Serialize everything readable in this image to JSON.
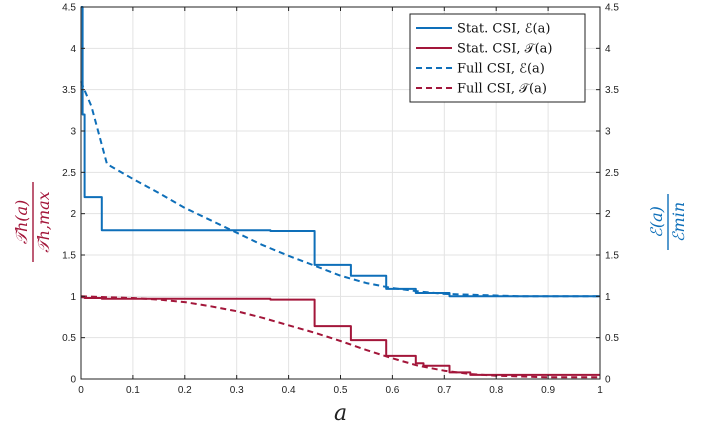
{
  "chart_data": {
    "type": "line",
    "xlabel": "a",
    "ylabel_left": {
      "num": "𝒯h(a)",
      "den": "𝒯h,max"
    },
    "ylabel_right": {
      "num": "ℰ(a)",
      "den": "ℰmin"
    },
    "xlim": [
      0,
      1
    ],
    "ylim": [
      0,
      4.5
    ],
    "grid": true,
    "legend_position": "top-right",
    "x_ticks": [
      "0",
      "0.1",
      "0.2",
      "0.3",
      "0.4",
      "0.5",
      "0.6",
      "0.7",
      "0.8",
      "0.9",
      "1"
    ],
    "y_ticks": [
      "0",
      "0.5",
      "1",
      "1.5",
      "2",
      "2.5",
      "3",
      "3.5",
      "4",
      "4.5"
    ],
    "colors": {
      "blue": "#0e6fb9",
      "red": "#a3163a"
    },
    "series": [
      {
        "name": "Stat. CSI, ℰ(a)",
        "color": "#0e6fb9",
        "dash": "solid",
        "x": [
          0,
          0.003,
          0.003,
          0.007,
          0.007,
          0.04,
          0.04,
          0.365,
          0.365,
          0.45,
          0.45,
          0.52,
          0.52,
          0.588,
          0.588,
          0.645,
          0.645,
          0.71,
          0.71,
          1.0
        ],
        "y": [
          4.5,
          4.5,
          3.2,
          3.2,
          2.2,
          2.2,
          1.8,
          1.8,
          1.79,
          1.79,
          1.38,
          1.38,
          1.25,
          1.25,
          1.09,
          1.09,
          1.04,
          1.04,
          1.0,
          1.0
        ]
      },
      {
        "name": "Stat. CSI, 𝒯(a)",
        "color": "#a3163a",
        "dash": "solid",
        "x": [
          0,
          0.007,
          0.007,
          0.04,
          0.04,
          0.365,
          0.365,
          0.45,
          0.45,
          0.52,
          0.52,
          0.588,
          0.588,
          0.645,
          0.645,
          0.66,
          0.66,
          0.71,
          0.71,
          0.75,
          0.75,
          1.0
        ],
        "y": [
          0.99,
          0.99,
          0.98,
          0.98,
          0.97,
          0.97,
          0.96,
          0.96,
          0.64,
          0.64,
          0.47,
          0.47,
          0.28,
          0.28,
          0.19,
          0.19,
          0.16,
          0.16,
          0.08,
          0.08,
          0.05,
          0.05
        ]
      },
      {
        "name": "Full CSI, ℰ(a)",
        "color": "#0e6fb9",
        "dash": "dashed",
        "x": [
          0,
          0.005,
          0.02,
          0.05,
          0.1,
          0.15,
          0.2,
          0.25,
          0.3,
          0.35,
          0.4,
          0.45,
          0.5,
          0.55,
          0.6,
          0.65,
          0.7,
          0.75,
          0.8,
          0.85,
          0.9,
          0.95,
          1.0
        ],
        "y": [
          3.6,
          3.52,
          3.3,
          2.6,
          2.42,
          2.25,
          2.07,
          1.92,
          1.77,
          1.62,
          1.49,
          1.37,
          1.25,
          1.16,
          1.1,
          1.06,
          1.03,
          1.02,
          1.01,
          1.0,
          1.0,
          1.0,
          1.0
        ]
      },
      {
        "name": "Full CSI, 𝒯(a)",
        "color": "#a3163a",
        "dash": "dashed",
        "x": [
          0,
          0.05,
          0.1,
          0.15,
          0.2,
          0.25,
          0.3,
          0.35,
          0.4,
          0.45,
          0.5,
          0.55,
          0.6,
          0.65,
          0.7,
          0.75,
          0.8,
          0.85,
          0.9,
          0.95,
          1.0
        ],
        "y": [
          1.0,
          0.99,
          0.98,
          0.96,
          0.93,
          0.88,
          0.82,
          0.74,
          0.65,
          0.56,
          0.46,
          0.35,
          0.25,
          0.16,
          0.1,
          0.06,
          0.04,
          0.03,
          0.02,
          0.02,
          0.02
        ]
      }
    ]
  }
}
